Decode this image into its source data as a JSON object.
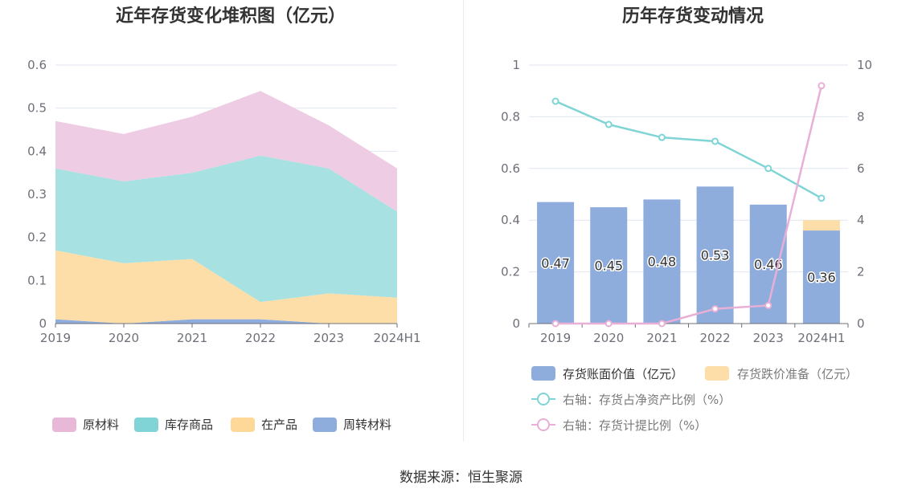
{
  "source": "数据来源：恒生聚源",
  "chart_data": [
    {
      "type": "area",
      "stacked": true,
      "title": "近年存货变化堆积图（亿元）",
      "categories": [
        "2019",
        "2020",
        "2021",
        "2022",
        "2023",
        "2024H1"
      ],
      "y_ticks": [
        "0",
        "0.1",
        "0.2",
        "0.3",
        "0.4",
        "0.5",
        "0.6"
      ],
      "ylim": [
        0,
        0.6
      ],
      "series": [
        {
          "name": "周转材料",
          "color": "#8eacdc",
          "values": [
            0.01,
            0.0,
            0.01,
            0.01,
            0.0,
            0.0
          ]
        },
        {
          "name": "在产品",
          "color": "#fddea8",
          "values": [
            0.16,
            0.14,
            0.14,
            0.04,
            0.07,
            0.06
          ]
        },
        {
          "name": "库存商品",
          "color": "#a8e1e2",
          "values": [
            0.19,
            0.19,
            0.2,
            0.34,
            0.29,
            0.2
          ]
        },
        {
          "name": "原材料",
          "color": "#eecce4",
          "values": [
            0.11,
            0.11,
            0.13,
            0.15,
            0.1,
            0.1
          ]
        }
      ],
      "legend": [
        {
          "name": "原材料",
          "color": "#e8b8d8"
        },
        {
          "name": "库存商品",
          "color": "#80d4d6"
        },
        {
          "name": "在产品",
          "color": "#fdd899"
        },
        {
          "name": "周转材料",
          "color": "#8eacdc"
        }
      ]
    },
    {
      "type": "bar+line",
      "title": "历年存货变动情况",
      "categories": [
        "2019",
        "2020",
        "2021",
        "2022",
        "2023",
        "2024H1"
      ],
      "y_left_ticks": [
        "0",
        "0.2",
        "0.4",
        "0.6",
        "0.8",
        "1"
      ],
      "y_right_ticks": [
        "0",
        "2",
        "4",
        "6",
        "8",
        "10"
      ],
      "ylim_left": [
        0,
        1
      ],
      "ylim_right": [
        0,
        10
      ],
      "bars": {
        "book_value": {
          "name": "存货账面价值（亿元）",
          "color": "#8eacdc",
          "values": [
            0.47,
            0.45,
            0.48,
            0.53,
            0.46,
            0.36
          ],
          "labels": [
            "0.47",
            "0.45",
            "0.48",
            "0.53",
            "0.46",
            "0.36"
          ]
        },
        "impairment": {
          "name": "存货跌价准备（亿元）",
          "color": "#fddea8",
          "values": [
            0,
            0,
            0,
            0,
            0,
            0.04
          ]
        }
      },
      "lines": [
        {
          "name": "右轴：存货占净资产比例（%）",
          "color": "#80d4d6",
          "values": [
            8.6,
            7.7,
            7.2,
            7.05,
            6.0,
            4.85
          ]
        },
        {
          "name": "右轴：存货计提比例（%）",
          "color": "#e8b0d6",
          "values": [
            0.0,
            0.0,
            0.0,
            0.57,
            0.7,
            9.2
          ]
        }
      ]
    }
  ]
}
